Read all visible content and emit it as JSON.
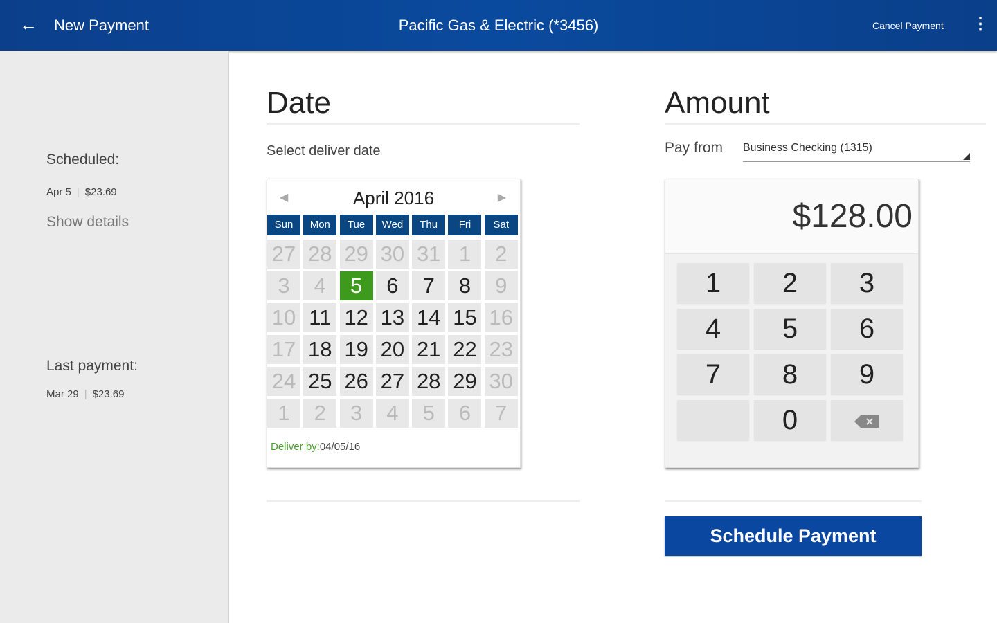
{
  "header": {
    "back_icon": "arrow-left-icon",
    "title": "New Payment",
    "payee": "Pacific Gas & Electric (*3456)",
    "cancel": "Cancel Payment",
    "menu_icon": "more-vert-icon"
  },
  "sidebar": {
    "scheduled_label": "Scheduled:",
    "scheduled_date": "Apr 5",
    "scheduled_amount": "$23.69",
    "show_details": "Show details",
    "last_label": "Last payment:",
    "last_date": "Mar 29",
    "last_amount": "$23.69"
  },
  "date": {
    "title": "Date",
    "subtitle": "Select deliver date",
    "month": "April 2016",
    "prev": "◀",
    "next": "▶",
    "weekdays": [
      "Sun",
      "Mon",
      "Tue",
      "Wed",
      "Thu",
      "Fri",
      "Sat"
    ],
    "days": [
      {
        "d": "27",
        "s": "m"
      },
      {
        "d": "28",
        "s": "m"
      },
      {
        "d": "29",
        "s": "m"
      },
      {
        "d": "30",
        "s": "m"
      },
      {
        "d": "31",
        "s": "m"
      },
      {
        "d": "1",
        "s": "m"
      },
      {
        "d": "2",
        "s": "m"
      },
      {
        "d": "3",
        "s": "m"
      },
      {
        "d": "4",
        "s": "m"
      },
      {
        "d": "5",
        "s": "sel"
      },
      {
        "d": "6",
        "s": ""
      },
      {
        "d": "7",
        "s": ""
      },
      {
        "d": "8",
        "s": ""
      },
      {
        "d": "9",
        "s": "m"
      },
      {
        "d": "10",
        "s": "m"
      },
      {
        "d": "11",
        "s": ""
      },
      {
        "d": "12",
        "s": ""
      },
      {
        "d": "13",
        "s": ""
      },
      {
        "d": "14",
        "s": ""
      },
      {
        "d": "15",
        "s": ""
      },
      {
        "d": "16",
        "s": "m"
      },
      {
        "d": "17",
        "s": "m"
      },
      {
        "d": "18",
        "s": ""
      },
      {
        "d": "19",
        "s": ""
      },
      {
        "d": "20",
        "s": ""
      },
      {
        "d": "21",
        "s": ""
      },
      {
        "d": "22",
        "s": ""
      },
      {
        "d": "23",
        "s": "m"
      },
      {
        "d": "24",
        "s": "m"
      },
      {
        "d": "25",
        "s": ""
      },
      {
        "d": "26",
        "s": ""
      },
      {
        "d": "27",
        "s": ""
      },
      {
        "d": "28",
        "s": ""
      },
      {
        "d": "29",
        "s": ""
      },
      {
        "d": "30",
        "s": "m"
      },
      {
        "d": "1",
        "s": "m"
      },
      {
        "d": "2",
        "s": "m"
      },
      {
        "d": "3",
        "s": "m"
      },
      {
        "d": "4",
        "s": "m"
      },
      {
        "d": "5",
        "s": "m"
      },
      {
        "d": "6",
        "s": "m"
      },
      {
        "d": "7",
        "s": "m"
      }
    ],
    "deliver_label": "Deliver by:",
    "deliver_value": "04/05/16",
    "selected_color": "#3d9a1d"
  },
  "amount": {
    "title": "Amount",
    "pay_from_label": "Pay from",
    "account": "Business Checking (1315)",
    "value": "$128.00",
    "keys": [
      "1",
      "2",
      "3",
      "4",
      "5",
      "6",
      "7",
      "8",
      "9",
      "",
      "0",
      "⌫"
    ],
    "backspace_icon": "backspace-icon"
  },
  "schedule_button": "Schedule Payment",
  "colors": {
    "header": "#0a4a9e",
    "accent": "#0a47a0",
    "calendar_header": "#0a4682"
  }
}
